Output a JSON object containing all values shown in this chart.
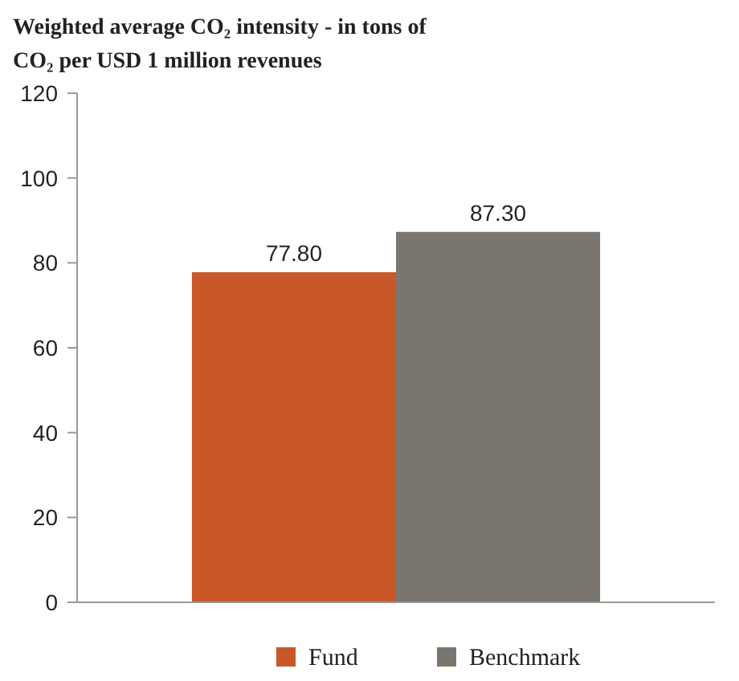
{
  "chart_data": {
    "type": "bar",
    "title": "Weighted average CO₂ intensity - in tons of CO₂ per USD 1 million revenues",
    "categories": [
      null
    ],
    "series": [
      {
        "name": "Fund",
        "color": "#c8582a",
        "values": [
          77.8
        ],
        "value_labels": [
          "77.80"
        ]
      },
      {
        "name": "Benchmark",
        "color": "#7a756e",
        "values": [
          87.3
        ],
        "value_labels": [
          "87.30"
        ]
      }
    ],
    "ylim": [
      0,
      120
    ],
    "yticks": [
      0,
      20,
      40,
      60,
      80,
      100,
      120
    ],
    "legend": "bottom",
    "grid": false
  }
}
